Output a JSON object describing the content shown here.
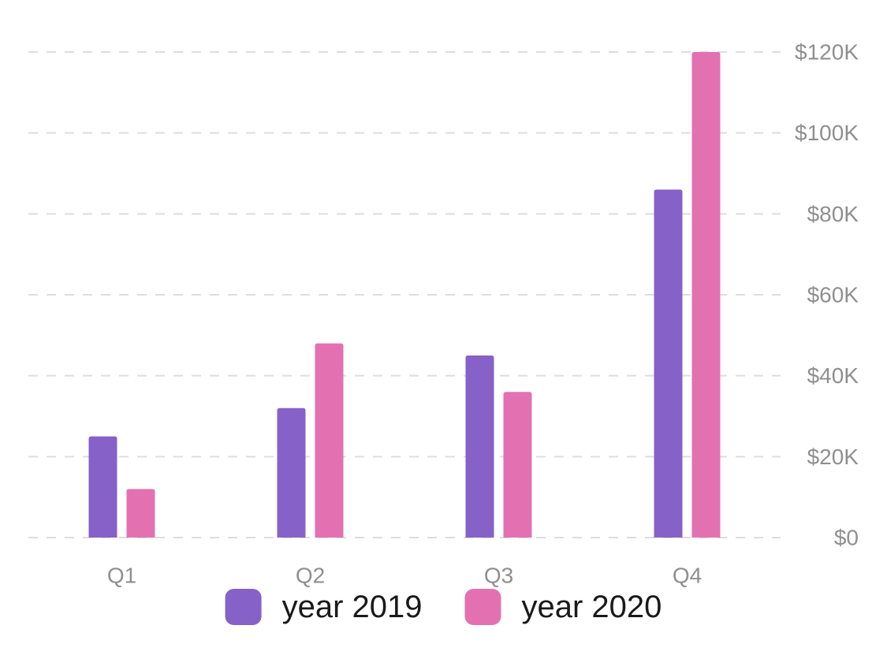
{
  "chart_data": {
    "type": "bar",
    "categories": [
      "Q1",
      "Q2",
      "Q3",
      "Q4"
    ],
    "series": [
      {
        "name": "year 2019",
        "values": [
          25000,
          32000,
          45000,
          86000
        ],
        "color": "#8661c8"
      },
      {
        "name": "year 2020",
        "values": [
          12000,
          48000,
          36000,
          120000
        ],
        "color": "#e371b2"
      }
    ],
    "ylim": [
      0,
      120000
    ],
    "y_ticks": [
      0,
      20000,
      40000,
      60000,
      80000,
      100000,
      120000
    ],
    "y_tick_labels": [
      "$0",
      "$20K",
      "$40K",
      "$60K",
      "$80K",
      "$100K",
      "$120K"
    ],
    "y_axis_position": "right",
    "grid": true,
    "grid_style": "dashed",
    "grid_color": "#dddddd",
    "tick_label_color": "#8f8f8f",
    "legend_text_color": "#1a1a1a",
    "legend_position": "bottom"
  }
}
